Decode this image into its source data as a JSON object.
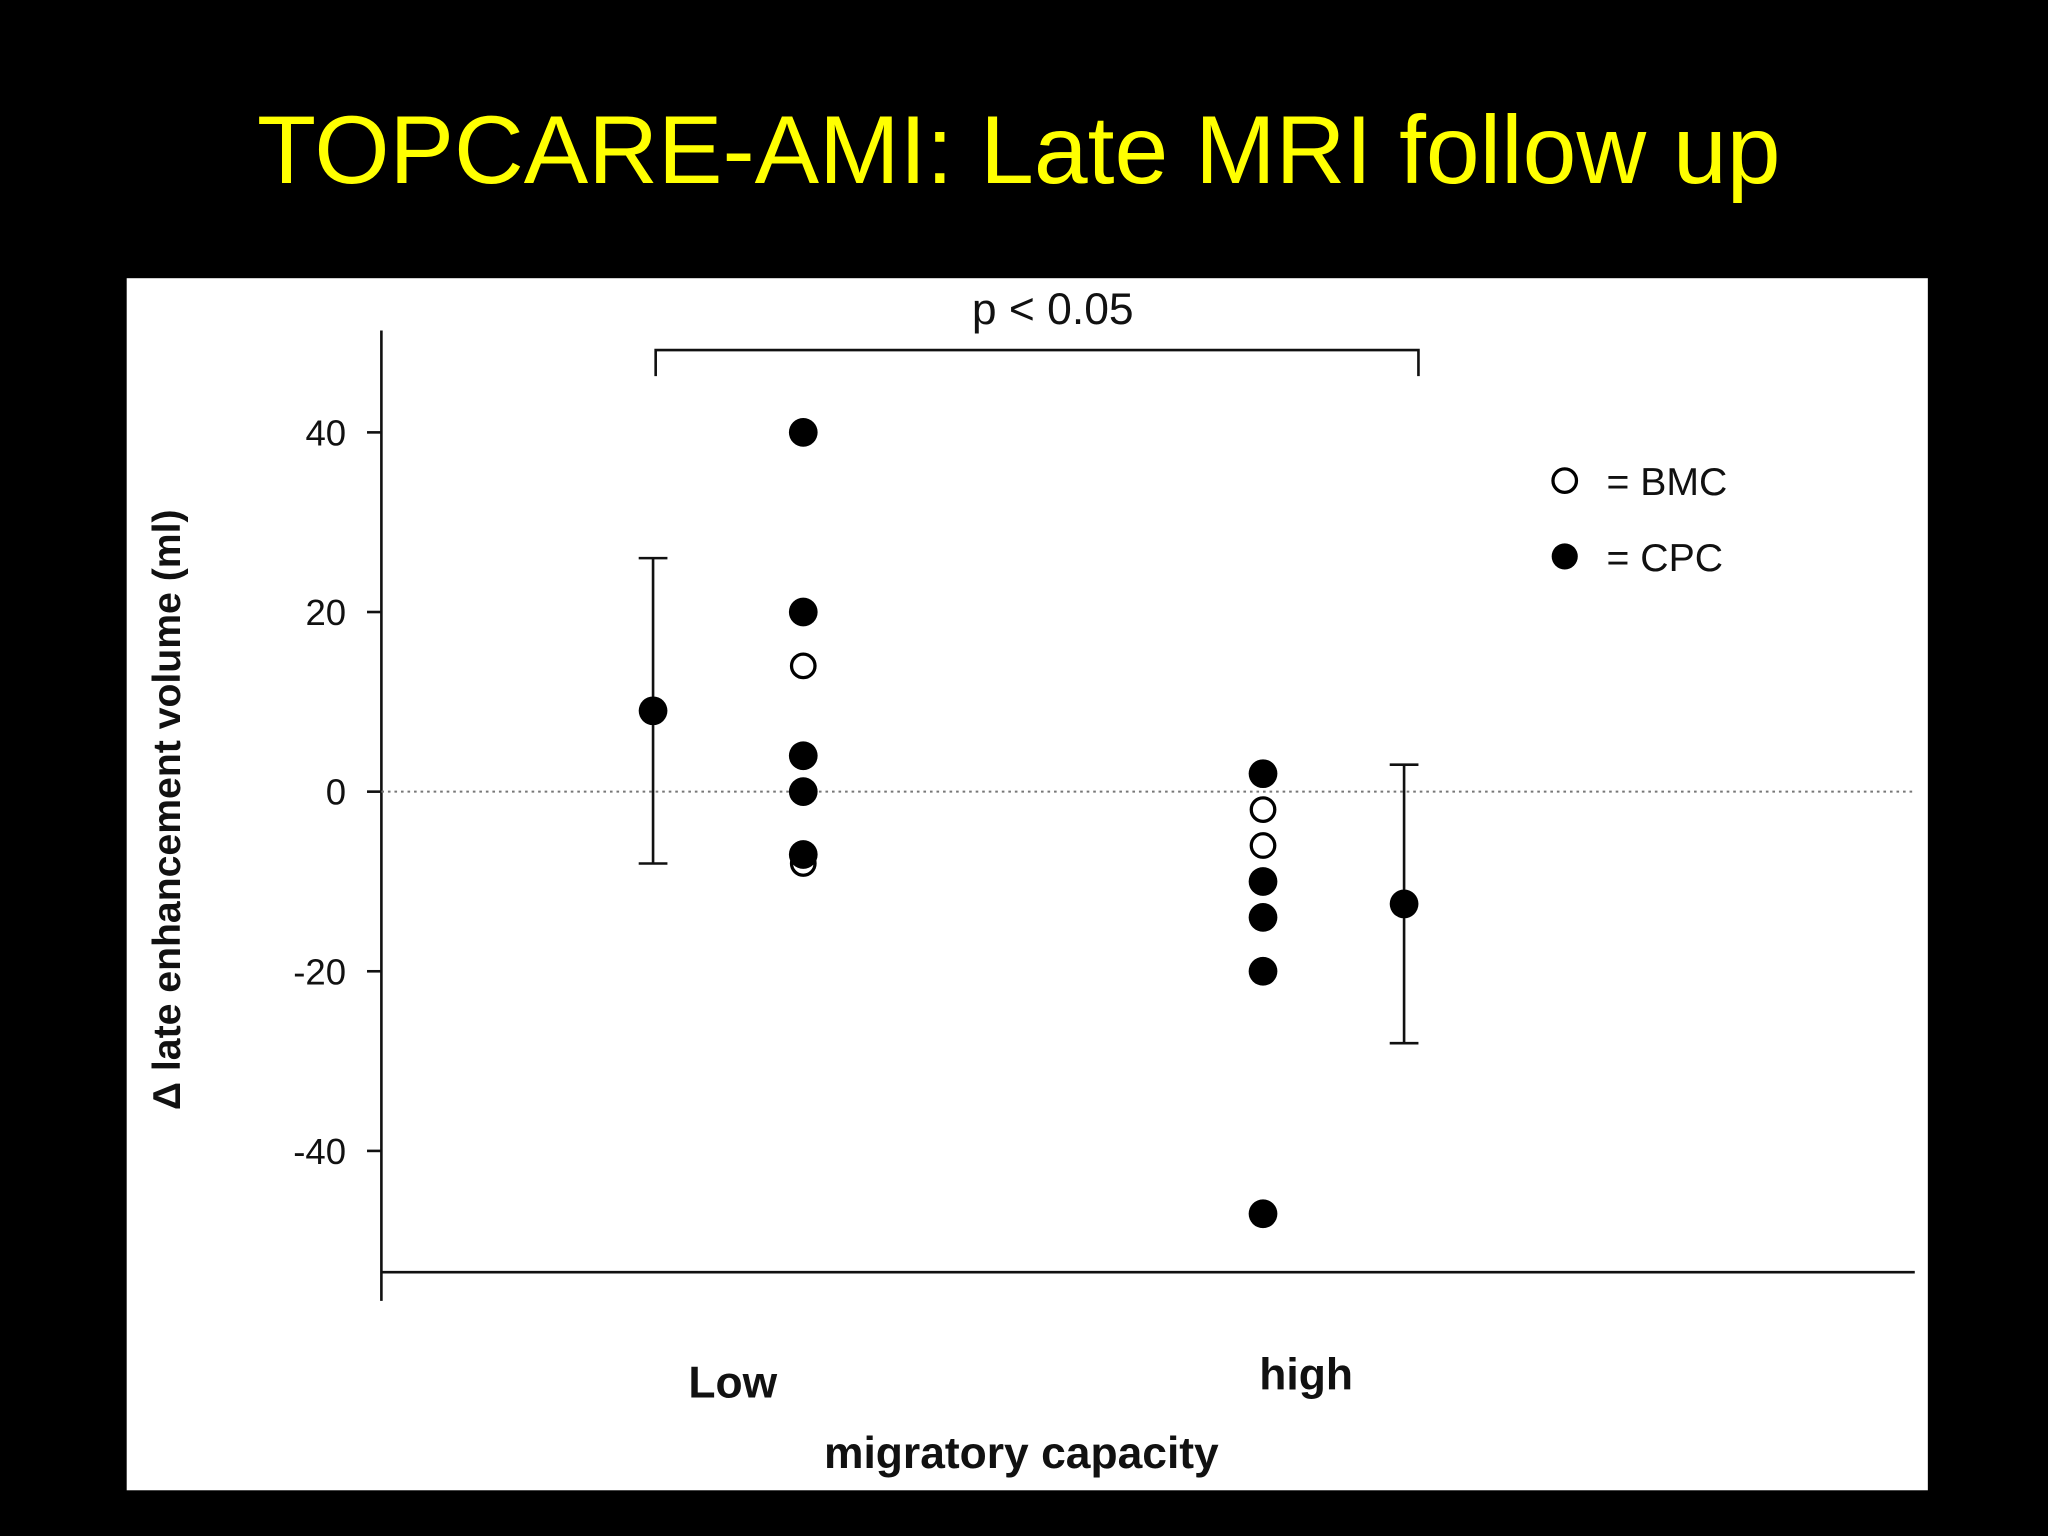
{
  "title": "TOPCARE-AMI: Late MRI follow up",
  "chart_data": {
    "type": "dot",
    "ylabel": "Δ late enhancement volume (ml)",
    "xlabel": "migratory capacity",
    "annotation": "p < 0.05",
    "categories": [
      "Low",
      "high"
    ],
    "series": [
      {
        "name": "= BMC",
        "color": "#000000",
        "marker": "open",
        "values": [
          [
            14,
            -8
          ],
          [
            -2,
            -6
          ]
        ]
      },
      {
        "name": "= CPC",
        "color": "#000000",
        "marker": "filled",
        "values": [
          [
            40,
            20,
            4,
            0,
            -7
          ],
          [
            2,
            -10,
            -14,
            -20,
            -47
          ]
        ]
      }
    ],
    "means": {
      "values": [
        9,
        -12.5
      ],
      "errors": [
        17,
        15.5
      ]
    },
    "reference_line": 0,
    "ylim": [
      -53.5,
      51
    ],
    "yticks": [
      40,
      20,
      0,
      -20,
      -40
    ]
  }
}
